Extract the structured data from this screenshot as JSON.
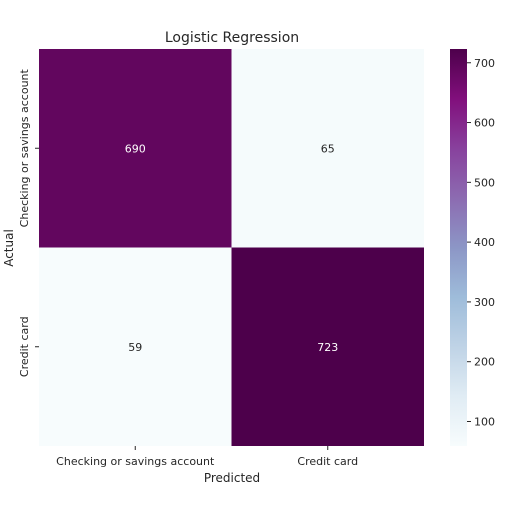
{
  "chart_data": {
    "type": "heatmap",
    "title": "Logistic Regression",
    "xlabel": "Predicted",
    "ylabel": "Actual",
    "x_categories": [
      "Checking or savings account",
      "Credit card"
    ],
    "y_categories": [
      "Checking or savings account",
      "Credit card"
    ],
    "values": [
      [
        690,
        65
      ],
      [
        59,
        723
      ]
    ],
    "colormap": "BuPu",
    "colorbar": {
      "ticks": [
        100,
        200,
        300,
        400,
        500,
        600,
        700
      ],
      "range": [
        59,
        723
      ]
    },
    "colors": {
      "high": "#4d004b",
      "low": "#f7fcfd"
    }
  }
}
